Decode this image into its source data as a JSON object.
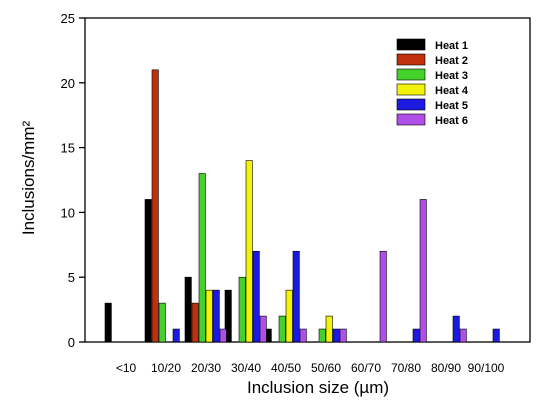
{
  "chart_data": {
    "type": "bar",
    "xlabel": "Inclusion size  (µm)",
    "ylabel": "Inclusions/mm²",
    "ylim": [
      0,
      25
    ],
    "yticks": [
      0,
      5,
      10,
      15,
      20,
      25
    ],
    "categories": [
      "<10",
      "10/20",
      "20/30",
      "30/40",
      "40/50",
      "50/60",
      "60/70",
      "70/80",
      "80/90",
      "90/100"
    ],
    "legend_position": "top-right",
    "grid": false,
    "series": [
      {
        "name": "Heat 1",
        "color": "#000000",
        "values": [
          3,
          11,
          5,
          4,
          1,
          0,
          0,
          0,
          0,
          0
        ]
      },
      {
        "name": "Heat 2",
        "color": "#c0300a",
        "values": [
          0,
          21,
          3,
          0,
          0,
          0,
          0,
          0,
          0,
          0
        ]
      },
      {
        "name": "Heat 3",
        "color": "#44d12c",
        "values": [
          0,
          3,
          13,
          5,
          2,
          1,
          0,
          0,
          0,
          0
        ]
      },
      {
        "name": "Heat 4",
        "color": "#f2f20a",
        "values": [
          0,
          0,
          4,
          14,
          4,
          2,
          0,
          0,
          0,
          0
        ]
      },
      {
        "name": "Heat 5",
        "color": "#1a1ae0",
        "values": [
          0,
          1,
          4,
          7,
          7,
          1,
          0,
          1,
          2,
          1
        ]
      },
      {
        "name": "Heat 6",
        "color": "#b04ee8",
        "values": [
          0,
          0,
          1,
          2,
          1,
          1,
          7,
          11,
          1,
          0
        ]
      }
    ]
  }
}
